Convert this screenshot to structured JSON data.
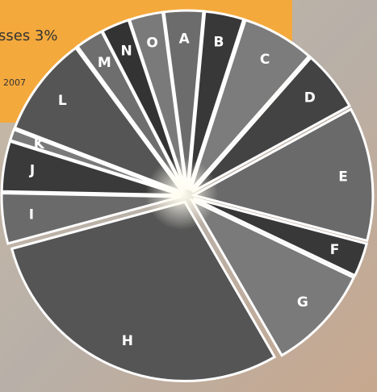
{
  "header": {
    "caption": "sses 3%",
    "year": "2007"
  },
  "chart_data": {
    "type": "pie",
    "categories": [
      "A",
      "B",
      "C",
      "D",
      "E",
      "F",
      "G",
      "H",
      "I",
      "J",
      "K",
      "L",
      "M",
      "N",
      "O"
    ],
    "values": [
      3.5,
      3.5,
      6.5,
      5.5,
      12,
      3,
      9.5,
      29,
      4.5,
      4.5,
      1,
      9,
      2.5,
      2.5,
      3
    ],
    "colors": [
      "#6c6c6c",
      "#383838",
      "#7c7c7c",
      "#434343",
      "#6a6a6a",
      "#383838",
      "#7a7a7a",
      "#555555",
      "#6a6a6a",
      "#3a3a3a",
      "#7a7a7a",
      "#555555",
      "#6e6e6e",
      "#333333",
      "#7a7a7a"
    ]
  }
}
